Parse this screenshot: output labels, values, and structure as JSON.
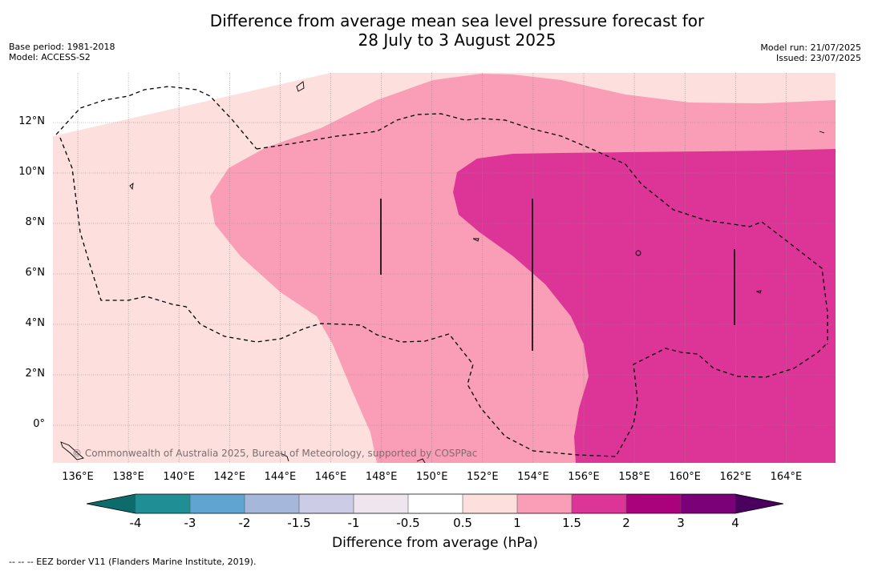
{
  "title": {
    "line1": "Difference from average mean sea level pressure forecast for",
    "line2": "28 July to 3 August 2025"
  },
  "meta": {
    "base_period": "Base period: 1981-2018",
    "model": "Model: ACCESS-S2",
    "model_run": "Model run: 21/07/2025",
    "issued": "Issued: 23/07/2025"
  },
  "map": {
    "lon_ticks": [
      "136°E",
      "138°E",
      "140°E",
      "142°E",
      "144°E",
      "146°E",
      "148°E",
      "150°E",
      "152°E",
      "154°E",
      "156°E",
      "158°E",
      "160°E",
      "162°E",
      "164°E"
    ],
    "lat_ticks": [
      "12°N",
      "10°N",
      "8°N",
      "6°N",
      "4°N",
      "2°N",
      "0°"
    ],
    "copyright": "© Commonwealth of Australia 2025, Bureau of Meteorology, supported by COSPPac",
    "region_colors": {
      "band_0_5_to_1": "#fddfde",
      "band_1_to_1_5": "#f99eb6",
      "band_1_5_to_2": "#dd3498"
    }
  },
  "colorbar": {
    "labels": [
      "-4",
      "-3",
      "-2",
      "-1.5",
      "-1",
      "-0.5",
      "0.5",
      "1",
      "1.5",
      "2",
      "3",
      "4"
    ],
    "colors": [
      "#1f8f95",
      "#5fa5d2",
      "#a5b7da",
      "#cccce6",
      "#eee5ee",
      "#ffffff",
      "#fddfde",
      "#f99eb6",
      "#dd3498",
      "#ac017d",
      "#7a0177"
    ],
    "under_color": "#0d6b6b",
    "over_color": "#4b0060",
    "title": "Difference from average (hPa)"
  },
  "footnote": "--  --  -- EEZ border V11 (Flanders Marine Institute, 2019)."
}
